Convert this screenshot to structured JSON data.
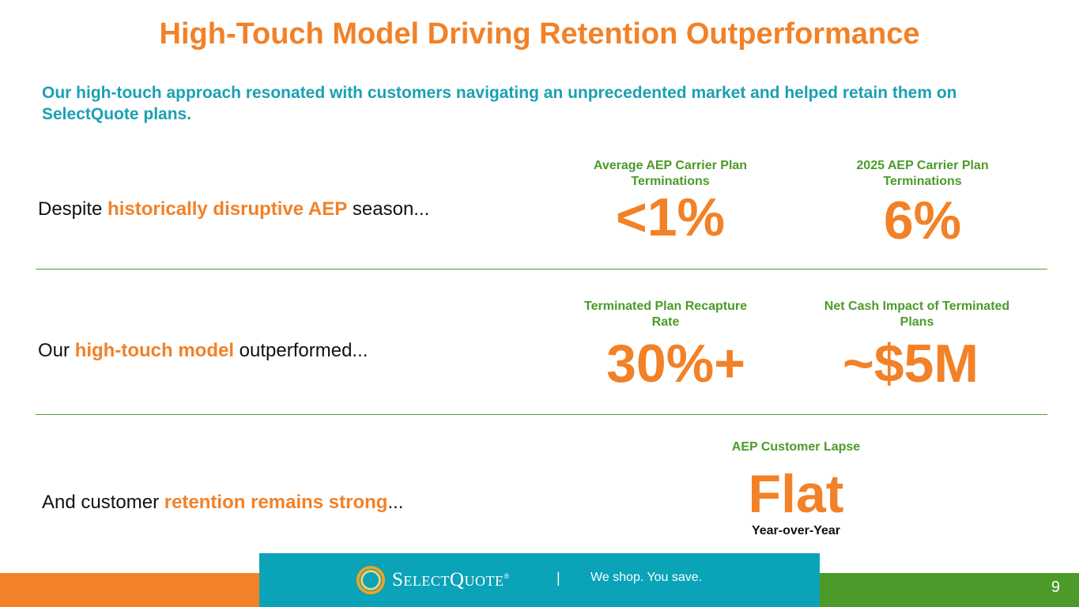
{
  "title": "High-Touch Model Driving Retention Outperformance",
  "subtitle": "Our high-touch approach resonated with customers navigating an unprecedented market and helped retain them on SelectQuote plans.",
  "rows": [
    {
      "prefix": "Despite ",
      "highlight": "historically disruptive AEP",
      "suffix": " season...",
      "metrics": [
        {
          "label": "Average AEP Carrier Plan Terminations",
          "value": "<1%"
        },
        {
          "label": "2025 AEP Carrier Plan Terminations",
          "value": "6%"
        }
      ]
    },
    {
      "prefix": "Our ",
      "highlight": "high-touch model",
      "suffix": " outperformed...",
      "metrics": [
        {
          "label": "Terminated Plan Recapture Rate",
          "value": "30%+"
        },
        {
          "label": "Net Cash Impact of Terminated Plans",
          "value": "~$5M"
        }
      ]
    },
    {
      "prefix": "And customer ",
      "highlight": "retention remains strong",
      "suffix": "...",
      "metrics": [
        {
          "label": "AEP Customer Lapse",
          "value": "Flat",
          "note": "Year-over-Year"
        }
      ]
    }
  ],
  "footer": {
    "logo_text": "SelectQuote",
    "logo_trademark": "®",
    "separator": "|",
    "tagline": "We shop. You save.",
    "page_number": "9"
  },
  "colors": {
    "accent_orange": "#f28127",
    "accent_green": "#4c9a2a",
    "accent_teal": "#0aa3b8"
  }
}
